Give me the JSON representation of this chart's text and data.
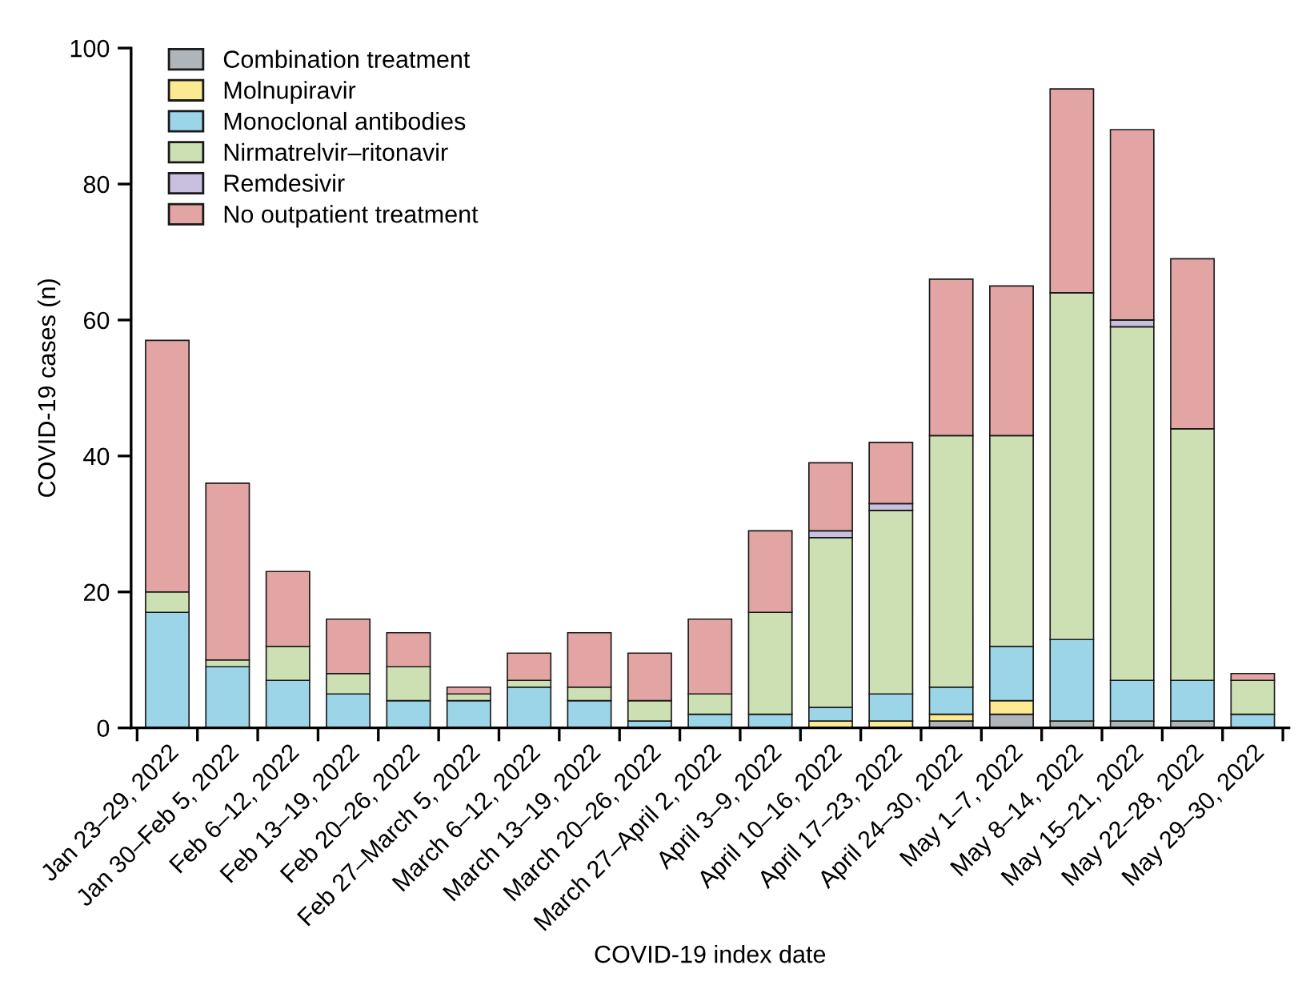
{
  "chart_data": {
    "type": "bar",
    "stacked": true,
    "xlabel": "COVID-19 index date",
    "ylabel": "COVID-19 cases (n)",
    "categories": [
      "Jan 23–29, 2022",
      "Jan 30–Feb 5, 2022",
      "Feb 6–12, 2022",
      "Feb 13–19, 2022",
      "Feb 20–26, 2022",
      "Feb 27–March 5, 2022",
      "March 6–12, 2022",
      "March 13–19, 2022",
      "March 20–26, 2022",
      "March 27–April 2, 2022",
      "April 3–9, 2022",
      "April 10–16, 2022",
      "April 17–23, 2022",
      "April 24–30, 2022",
      "May 1–7, 2022",
      "May 8–14, 2022",
      "May 15–21, 2022",
      "May 22–28, 2022",
      "May 29–30, 2022"
    ],
    "series": [
      {
        "name": "Combination treatment",
        "color": "#b0b5b9",
        "values": [
          0,
          0,
          0,
          0,
          0,
          0,
          0,
          0,
          0,
          0,
          0,
          0,
          0,
          1,
          2,
          1,
          1,
          1,
          0
        ]
      },
      {
        "name": "Molnupiravir",
        "color": "#fbea91",
        "values": [
          0,
          0,
          0,
          0,
          0,
          0,
          0,
          0,
          0,
          0,
          0,
          1,
          1,
          1,
          2,
          0,
          0,
          0,
          0
        ]
      },
      {
        "name": "Monoclonal antibodies",
        "color": "#9dd5e8",
        "values": [
          17,
          9,
          7,
          5,
          4,
          4,
          6,
          4,
          1,
          2,
          2,
          2,
          4,
          4,
          8,
          12,
          6,
          6,
          2
        ]
      },
      {
        "name": "Nirmatrelvir–ritonavir",
        "color": "#cce0b4",
        "values": [
          3,
          1,
          5,
          3,
          5,
          1,
          1,
          2,
          3,
          3,
          15,
          25,
          27,
          37,
          31,
          51,
          52,
          37,
          5
        ]
      },
      {
        "name": "Remdesivir",
        "color": "#c9c0e0",
        "values": [
          0,
          0,
          0,
          0,
          0,
          0,
          0,
          0,
          0,
          0,
          0,
          1,
          1,
          0,
          0,
          0,
          1,
          0,
          0
        ]
      },
      {
        "name": "No outpatient treatment",
        "color": "#e3a5a4",
        "values": [
          37,
          26,
          11,
          8,
          5,
          1,
          4,
          8,
          7,
          11,
          12,
          10,
          9,
          23,
          22,
          30,
          28,
          25,
          1
        ]
      }
    ],
    "ylim": [
      0,
      100
    ],
    "yticks": [
      0,
      20,
      40,
      60,
      80,
      100
    ],
    "grid": false,
    "legend": "top left"
  }
}
